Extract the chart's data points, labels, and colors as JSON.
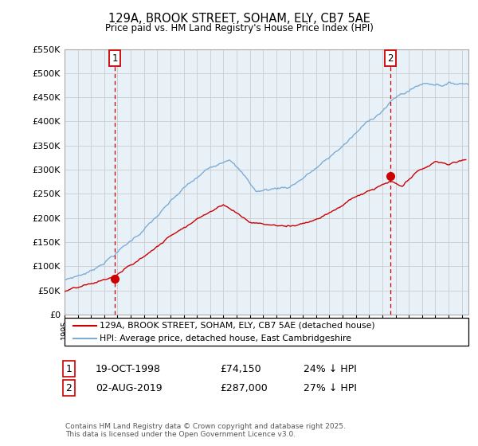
{
  "title": "129A, BROOK STREET, SOHAM, ELY, CB7 5AE",
  "subtitle": "Price paid vs. HM Land Registry's House Price Index (HPI)",
  "legend_house": "129A, BROOK STREET, SOHAM, ELY, CB7 5AE (detached house)",
  "legend_hpi": "HPI: Average price, detached house, East Cambridgeshire",
  "footer": "Contains HM Land Registry data © Crown copyright and database right 2025.\nThis data is licensed under the Open Government Licence v3.0.",
  "sale1_label": "1",
  "sale1_date": "19-OCT-1998",
  "sale1_price": "£74,150",
  "sale1_hpi": "24% ↓ HPI",
  "sale1_x": 1998.8,
  "sale1_y": 74150,
  "sale2_label": "2",
  "sale2_date": "02-AUG-2019",
  "sale2_price": "£287,000",
  "sale2_hpi": "27% ↓ HPI",
  "sale2_x": 2019.58,
  "sale2_y": 287000,
  "ylim": [
    0,
    550000
  ],
  "xlim_start": 1995,
  "xlim_end": 2025.5,
  "house_color": "#cc0000",
  "hpi_color": "#7dadd4",
  "vline_color": "#cc0000",
  "grid_color": "#cccccc",
  "bg_color": "#ffffff",
  "plot_bg": "#e8f0f8"
}
